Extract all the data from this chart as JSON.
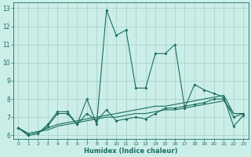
{
  "xlabel": "Humidex (Indice chaleur)",
  "bg_color": "#cceee8",
  "grid_color": "#aad4cc",
  "line_color": "#1a6e62",
  "xlim": [
    -0.5,
    23.5
  ],
  "ylim": [
    5.8,
    13.3
  ],
  "xticks": [
    0,
    1,
    2,
    3,
    4,
    5,
    6,
    7,
    8,
    9,
    10,
    11,
    12,
    13,
    14,
    15,
    16,
    17,
    18,
    19,
    20,
    21,
    22,
    23
  ],
  "yticks": [
    6,
    7,
    8,
    9,
    10,
    11,
    12,
    13
  ],
  "series": [
    {
      "y": [
        6.4,
        6.0,
        6.1,
        6.6,
        7.3,
        7.3,
        6.6,
        8.0,
        6.6,
        12.9,
        11.5,
        11.8,
        8.6,
        8.6,
        10.5,
        10.5,
        11.0,
        7.5,
        8.8,
        8.5,
        8.3,
        8.1,
        6.5,
        7.1
      ],
      "marker": true
    },
    {
      "y": [
        6.4,
        6.0,
        6.1,
        6.5,
        7.2,
        7.2,
        6.6,
        7.2,
        6.8,
        7.4,
        6.8,
        6.9,
        7.0,
        6.9,
        7.2,
        7.5,
        7.5,
        7.6,
        7.7,
        7.8,
        8.0,
        8.0,
        7.0,
        7.2
      ],
      "marker": true
    },
    {
      "y": [
        6.4,
        6.1,
        6.2,
        6.4,
        6.6,
        6.7,
        6.8,
        6.9,
        7.0,
        7.1,
        7.2,
        7.3,
        7.4,
        7.5,
        7.6,
        7.6,
        7.7,
        7.8,
        7.9,
        8.0,
        8.1,
        8.2,
        7.2,
        7.2
      ],
      "marker": false
    },
    {
      "y": [
        6.4,
        6.1,
        6.2,
        6.3,
        6.5,
        6.6,
        6.7,
        6.8,
        6.9,
        7.0,
        7.0,
        7.1,
        7.2,
        7.2,
        7.3,
        7.4,
        7.4,
        7.5,
        7.6,
        7.7,
        7.8,
        7.9,
        7.2,
        7.2
      ],
      "marker": false
    }
  ]
}
